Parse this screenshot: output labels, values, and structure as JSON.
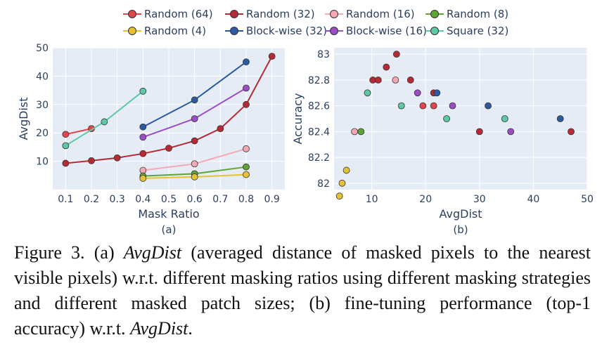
{
  "legend": [
    {
      "name": "Random (64)",
      "color": "#e0474c"
    },
    {
      "name": "Random (32)",
      "color": "#b52a35"
    },
    {
      "name": "Random (16)",
      "color": "#f4a9b5"
    },
    {
      "name": "Random (8)",
      "color": "#5fa534"
    },
    {
      "name": "Random (4)",
      "color": "#e6c233"
    },
    {
      "name": "Block-wise (32)",
      "color": "#2c5aa0"
    },
    {
      "name": "Block-wise (16)",
      "color": "#9b4dc4"
    },
    {
      "name": "Square (32)",
      "color": "#5ec8a5"
    }
  ],
  "chart_data": [
    {
      "type": "line",
      "label": "(a)",
      "xlabel": "Mask Ratio",
      "ylabel": "AvgDist",
      "xlim": [
        0.05,
        0.95
      ],
      "ylim": [
        0,
        50
      ],
      "xticks": [
        "0.1",
        "0.2",
        "0.3",
        "0.4",
        "0.5",
        "0.6",
        "0.7",
        "0.8",
        "0.9"
      ],
      "yticks": [
        "10",
        "20",
        "30",
        "40",
        "50"
      ],
      "grid": true,
      "plot_bg": "#e5ecf6",
      "series": [
        {
          "name": "Random (64)",
          "x": [
            0.1,
            0.2
          ],
          "y": [
            19.5,
            21.5
          ]
        },
        {
          "name": "Random (32)",
          "x": [
            0.1,
            0.2,
            0.3,
            0.4,
            0.5,
            0.6,
            0.7,
            0.8,
            0.9
          ],
          "y": [
            9.3,
            10.2,
            11.2,
            12.7,
            14.6,
            17.2,
            21.5,
            30.0,
            47.0
          ]
        },
        {
          "name": "Random (16)",
          "x": [
            0.4,
            0.6,
            0.8
          ],
          "y": [
            6.8,
            9.1,
            14.4
          ]
        },
        {
          "name": "Random (8)",
          "x": [
            0.4,
            0.6,
            0.8
          ],
          "y": [
            4.8,
            5.6,
            8.0
          ]
        },
        {
          "name": "Random (4)",
          "x": [
            0.4,
            0.6,
            0.8
          ],
          "y": [
            4.0,
            4.5,
            5.3
          ]
        },
        {
          "name": "Block-wise (32)",
          "x": [
            0.4,
            0.6,
            0.8
          ],
          "y": [
            22.1,
            31.6,
            45.0
          ]
        },
        {
          "name": "Block-wise (16)",
          "x": [
            0.4,
            0.6,
            0.8
          ],
          "y": [
            18.5,
            25.0,
            35.8
          ]
        },
        {
          "name": "Square (32)",
          "x": [
            0.1,
            0.25,
            0.4
          ],
          "y": [
            15.5,
            23.9,
            34.7
          ]
        }
      ]
    },
    {
      "type": "scatter",
      "label": "(b)",
      "xlabel": "AvgDist",
      "ylabel": "Accuracy",
      "xlim": [
        3,
        50
      ],
      "ylim": [
        81.95,
        83.05
      ],
      "xticks": [
        "10",
        "20",
        "30",
        "40",
        "50"
      ],
      "yticks": [
        "82",
        "82.2",
        "82.4",
        "82.6",
        "82.8",
        "83"
      ],
      "grid": true,
      "plot_bg": "#e5ecf6",
      "series": [
        {
          "name": "Random (64)",
          "x": [
            19.5,
            21.5
          ],
          "y": [
            82.6,
            82.6
          ]
        },
        {
          "name": "Random (32)",
          "x": [
            10.2,
            11.2,
            12.7,
            14.6,
            17.2,
            21.5,
            30.0,
            47.0
          ],
          "y": [
            82.8,
            82.8,
            82.9,
            83.0,
            82.8,
            82.7,
            82.4,
            82.4
          ]
        },
        {
          "name": "Random (16)",
          "x": [
            6.8,
            14.4
          ],
          "y": [
            82.4,
            82.8
          ]
        },
        {
          "name": "Random (8)",
          "x": [
            8.0
          ],
          "y": [
            82.4
          ]
        },
        {
          "name": "Random (4)",
          "x": [
            4.0,
            4.5,
            5.3
          ],
          "y": [
            81.9,
            82.0,
            82.1
          ]
        },
        {
          "name": "Block-wise (32)",
          "x": [
            22.1,
            31.6,
            45.0
          ],
          "y": [
            82.7,
            82.6,
            82.5
          ]
        },
        {
          "name": "Block-wise (16)",
          "x": [
            18.5,
            25.0,
            35.8
          ],
          "y": [
            82.7,
            82.6,
            82.4
          ]
        },
        {
          "name": "Square (32)",
          "x": [
            9.2,
            15.5,
            23.9,
            34.7
          ],
          "y": [
            82.7,
            82.6,
            82.5,
            82.5
          ]
        }
      ]
    }
  ],
  "caption": {
    "fig": "Figure 3.",
    "a_prefix": "(a)",
    "a_term": "AvgDist",
    "a_text": "(averaged distance of masked pixels to the nearest visible pixels) w.r.t. different masking ratios using different masking strategies and different masked patch sizes; (b) fine-tuning performance (top-1 accuracy) w.r.t.",
    "b_term": "AvgDist",
    "end": "."
  }
}
